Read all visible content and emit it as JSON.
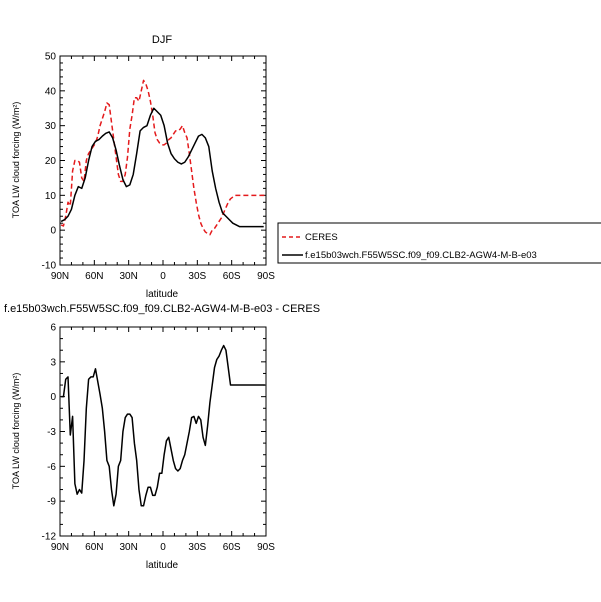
{
  "chart_data": [
    {
      "type": "line",
      "title": "DJF",
      "xlabel": "latitude",
      "ylabel": "TOA LW cloud forcing (W/m²)",
      "xlim": [
        90,
        -90
      ],
      "ylim": [
        -10,
        50
      ],
      "x_ticks": [
        90,
        60,
        30,
        0,
        -30,
        -60,
        -90
      ],
      "x_tick_labels": [
        "90N",
        "60N",
        "30N",
        "0",
        "30S",
        "60S",
        "90S"
      ],
      "y_ticks": [
        -10,
        0,
        10,
        20,
        30,
        40,
        50
      ],
      "y_tick_labels": [
        "-10",
        "0",
        "10",
        "20",
        "30",
        "40",
        "50"
      ],
      "legend": {
        "placement": "right",
        "entries": [
          {
            "name": "CERES",
            "color": "#e41a1c",
            "dash": "dashed"
          },
          {
            "name": "f.e15b03wch.F55W5SC.f09_f09.CLB2-AGW4-M-B-e03",
            "color": "#000000",
            "dash": "solid"
          }
        ]
      },
      "series": [
        {
          "name": "CERES",
          "color": "#e41a1c",
          "dash": "dashed",
          "x": [
            89,
            87,
            85,
            83,
            81,
            79,
            77,
            75,
            73,
            71,
            69,
            67,
            65,
            63,
            61,
            59,
            57,
            55,
            53,
            51,
            49,
            47,
            45,
            43,
            41,
            39,
            37,
            35,
            33,
            31,
            29,
            27,
            25,
            23,
            21,
            19,
            17,
            15,
            13,
            11,
            9,
            7,
            5,
            3,
            1,
            -1,
            -3,
            -5,
            -7,
            -9,
            -11,
            -13,
            -15,
            -17,
            -19,
            -21,
            -23,
            -25,
            -27,
            -29,
            -31,
            -33,
            -35,
            -37,
            -39,
            -41,
            -43,
            -45,
            -47,
            -49,
            -51,
            -53,
            -55,
            -57,
            -59,
            -61,
            -63,
            -65,
            -67,
            -69,
            -71,
            -73,
            -75,
            -77,
            -79,
            -81,
            -83,
            -85,
            -87,
            -89
          ],
          "y": [
            1.5,
            1.2,
            4,
            8,
            7,
            17,
            20,
            20,
            19.5,
            15,
            14,
            20,
            22,
            23,
            24,
            25,
            27,
            30,
            32,
            34,
            36.5,
            36,
            31,
            26,
            21,
            16,
            14,
            14,
            16,
            21,
            29,
            33,
            38,
            38,
            37,
            40,
            43,
            42,
            40,
            37,
            33,
            28,
            26,
            25,
            24.5,
            24.5,
            25,
            26,
            26.5,
            27.5,
            28.5,
            28.5,
            29,
            30,
            28,
            26.5,
            22,
            17,
            12,
            8,
            4.5,
            2,
            0.5,
            -0.5,
            -1,
            -1.3,
            0,
            0.5,
            1.5,
            2.5,
            3.5,
            5,
            6.5,
            8,
            9,
            9.5,
            10,
            10,
            10,
            10,
            10,
            10,
            10,
            10,
            10,
            10,
            10,
            10,
            10,
            10
          ]
        },
        {
          "name": "f.e15b03wch.F55W5SC.f09_f09.CLB2-AGW4-M-B-e03",
          "color": "#000000",
          "dash": "solid",
          "x": [
            89,
            86,
            83,
            80,
            77,
            74,
            71,
            68,
            65,
            62,
            59,
            56,
            53,
            50,
            47,
            44,
            41,
            38,
            35,
            32,
            29,
            26,
            23,
            20,
            17,
            14,
            11,
            8,
            5,
            2,
            -1,
            -4,
            -7,
            -10,
            -13,
            -16,
            -19,
            -22,
            -25,
            -28,
            -31,
            -34,
            -37,
            -40,
            -43,
            -46,
            -49,
            -52,
            -55,
            -58,
            -61,
            -64,
            -67,
            -70,
            -73,
            -76,
            -79,
            -82,
            -85,
            -88
          ],
          "y": [
            2.5,
            3,
            4,
            6,
            10,
            12.5,
            12,
            15,
            20,
            24,
            25.5,
            26,
            27,
            27.8,
            28.2,
            26.5,
            23,
            18.5,
            14.5,
            12.5,
            13,
            16,
            22,
            28.5,
            29.5,
            30,
            33,
            35,
            34,
            33,
            30,
            25,
            22,
            20.5,
            19.5,
            19,
            19.5,
            21,
            23,
            25,
            27,
            27.5,
            26.5,
            24,
            17,
            12,
            8,
            5,
            4,
            3,
            2,
            1.5,
            1,
            1,
            1,
            1,
            1,
            1,
            1,
            1
          ]
        }
      ]
    },
    {
      "type": "line",
      "title": "f.e15b03wch.F55W5SC.f09_f09.CLB2-AGW4-M-B-e03 - CERES",
      "xlabel": "latitude",
      "ylabel": "TOA LW cloud forcing (W/m²)",
      "xlim": [
        90,
        -90
      ],
      "ylim": [
        -12,
        6
      ],
      "x_ticks": [
        90,
        60,
        30,
        0,
        -30,
        -60,
        -90
      ],
      "x_tick_labels": [
        "90N",
        "60N",
        "30N",
        "0",
        "30S",
        "60S",
        "90S"
      ],
      "y_ticks": [
        -12,
        -9,
        -6,
        -3,
        0,
        3,
        6
      ],
      "y_tick_labels": [
        "-12",
        "-9",
        "-6",
        "-3",
        "0",
        "3",
        "6"
      ],
      "series": [
        {
          "color": "#000000",
          "dash": "solid",
          "x": [
            89,
            87,
            85,
            83,
            81,
            79,
            77,
            75,
            73,
            71,
            69,
            67,
            65,
            63,
            61,
            59,
            57,
            55,
            53,
            51,
            49,
            47,
            45,
            43,
            41,
            39,
            37,
            35,
            33,
            31,
            29,
            27,
            25,
            23,
            21,
            19,
            17,
            15,
            13,
            11,
            9,
            7,
            5,
            3,
            1,
            -1,
            -3,
            -5,
            -7,
            -9,
            -11,
            -13,
            -15,
            -17,
            -19,
            -21,
            -23,
            -25,
            -27,
            -29,
            -31,
            -33,
            -35,
            -37,
            -39,
            -41,
            -43,
            -45,
            -47,
            -49,
            -51,
            -53,
            -55,
            -57,
            -59,
            -61,
            -63,
            -65,
            -67,
            -69,
            -71,
            -73,
            -75,
            -77,
            -79,
            -81,
            -83,
            -85,
            -87,
            -89
          ],
          "y": [
            0,
            0,
            1.5,
            1.7,
            -3.3,
            -1.7,
            -7.5,
            -8.4,
            -8,
            -8.3,
            -5.5,
            -1,
            1.5,
            1.7,
            1.7,
            2.4,
            1.3,
            0.2,
            -1,
            -3,
            -5.5,
            -6,
            -8,
            -9.4,
            -8.4,
            -6,
            -5.5,
            -3,
            -1.8,
            -1.5,
            -1.5,
            -1.8,
            -4,
            -5.5,
            -8,
            -9.4,
            -9.4,
            -8.5,
            -7.8,
            -7.8,
            -8.5,
            -8.5,
            -7.8,
            -6.6,
            -6.6,
            -5,
            -3.8,
            -3.5,
            -4.5,
            -5.5,
            -6.2,
            -6.4,
            -6.2,
            -5.5,
            -5,
            -4,
            -3,
            -1.8,
            -1.7,
            -2.3,
            -1.7,
            -2,
            -3.5,
            -4.2,
            -2.5,
            -0.5,
            1,
            2.5,
            3.2,
            3.5,
            4,
            4.4,
            4,
            2.5,
            1,
            1,
            1,
            1,
            1,
            1,
            1,
            1,
            1,
            1,
            1,
            1,
            1,
            1,
            1,
            1
          ]
        }
      ]
    }
  ]
}
